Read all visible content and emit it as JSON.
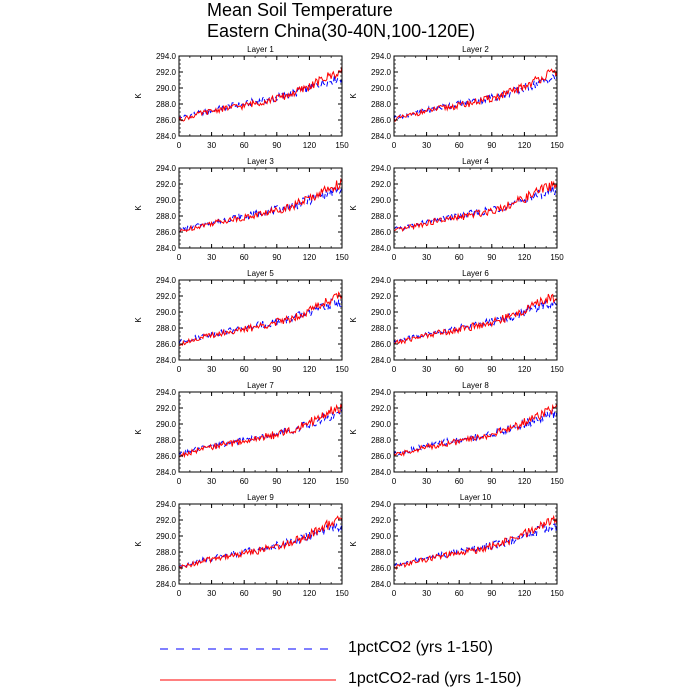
{
  "title": {
    "line1": "Mean Soil Temperature",
    "line2": "Eastern China(30-40N,100-120E)"
  },
  "legend": {
    "items": [
      {
        "label": "1pctCO2 (yrs 1-150)",
        "color": "#0000ff",
        "style": "dashed"
      },
      {
        "label": "1pctCO2-rad (yrs 1-150)",
        "color": "#ff0000",
        "style": "solid"
      }
    ]
  },
  "chart_data": {
    "type": "line",
    "layout": "5x2 small multiples",
    "ylabel": "K",
    "xlim": [
      0,
      150
    ],
    "ylim": [
      284.0,
      294.0
    ],
    "xticks": [
      0,
      30,
      60,
      90,
      120,
      150
    ],
    "yticks": [
      "284.0",
      "286.0",
      "288.0",
      "290.0",
      "292.0",
      "294.0"
    ],
    "grid": false,
    "legend_position": "bottom",
    "x_years": [
      0,
      10,
      20,
      30,
      40,
      50,
      60,
      70,
      80,
      90,
      100,
      110,
      120,
      130,
      140,
      150
    ],
    "series_names": [
      "1pctCO2 (yrs 1-150)",
      "1pctCO2-rad (yrs 1-150)"
    ],
    "panels": [
      {
        "title": "Layer 1",
        "series": [
          {
            "name": "1pctCO2 (yrs 1-150)",
            "values": [
              286.2,
              286.6,
              286.9,
              287.2,
              287.5,
              287.8,
              287.9,
              288.3,
              288.5,
              288.8,
              289.1,
              289.5,
              290.0,
              290.5,
              291.0,
              291.3
            ]
          },
          {
            "name": "1pctCO2-rad (yrs 1-150)",
            "values": [
              286.0,
              286.4,
              286.8,
              287.1,
              287.4,
              287.6,
              287.8,
              288.1,
              288.4,
              288.7,
              289.1,
              289.6,
              290.2,
              290.9,
              291.6,
              292.1
            ]
          }
        ]
      },
      {
        "title": "Layer 2",
        "series": [
          {
            "name": "1pctCO2 (yrs 1-150)",
            "values": [
              286.3,
              286.6,
              286.9,
              287.2,
              287.5,
              287.8,
              288.0,
              288.3,
              288.5,
              288.8,
              289.1,
              289.5,
              290.0,
              290.5,
              291.0,
              291.3
            ]
          },
          {
            "name": "1pctCO2-rad (yrs 1-150)",
            "values": [
              286.1,
              286.4,
              286.8,
              287.1,
              287.4,
              287.6,
              287.8,
              288.1,
              288.4,
              288.7,
              289.1,
              289.6,
              290.2,
              290.9,
              291.6,
              292.0
            ]
          }
        ]
      },
      {
        "title": "Layer 3",
        "series": [
          {
            "name": "1pctCO2 (yrs 1-150)",
            "values": [
              286.2,
              286.6,
              286.9,
              287.2,
              287.5,
              287.8,
              287.9,
              288.3,
              288.5,
              288.8,
              289.1,
              289.5,
              290.0,
              290.5,
              291.0,
              291.3
            ]
          },
          {
            "name": "1pctCO2-rad (yrs 1-150)",
            "values": [
              286.0,
              286.4,
              286.8,
              287.1,
              287.4,
              287.6,
              287.8,
              288.1,
              288.4,
              288.7,
              289.1,
              289.6,
              290.2,
              290.9,
              291.6,
              292.1
            ]
          }
        ]
      },
      {
        "title": "Layer 4",
        "series": [
          {
            "name": "1pctCO2 (yrs 1-150)",
            "values": [
              286.3,
              286.6,
              286.9,
              287.2,
              287.5,
              287.8,
              288.0,
              288.3,
              288.5,
              288.8,
              289.1,
              289.5,
              290.0,
              290.5,
              291.0,
              291.3
            ]
          },
          {
            "name": "1pctCO2-rad (yrs 1-150)",
            "values": [
              286.1,
              286.4,
              286.8,
              287.1,
              287.4,
              287.6,
              287.8,
              288.1,
              288.4,
              288.7,
              289.1,
              289.6,
              290.2,
              290.9,
              291.6,
              292.0
            ]
          }
        ]
      },
      {
        "title": "Layer 5",
        "series": [
          {
            "name": "1pctCO2 (yrs 1-150)",
            "values": [
              286.2,
              286.6,
              286.9,
              287.2,
              287.5,
              287.8,
              287.9,
              288.3,
              288.5,
              288.8,
              289.1,
              289.5,
              290.0,
              290.5,
              291.0,
              291.3
            ]
          },
          {
            "name": "1pctCO2-rad (yrs 1-150)",
            "values": [
              286.0,
              286.4,
              286.8,
              287.1,
              287.4,
              287.6,
              287.8,
              288.1,
              288.4,
              288.7,
              289.1,
              289.6,
              290.2,
              290.9,
              291.6,
              292.1
            ]
          }
        ]
      },
      {
        "title": "Layer 6",
        "series": [
          {
            "name": "1pctCO2 (yrs 1-150)",
            "values": [
              286.3,
              286.6,
              286.9,
              287.2,
              287.5,
              287.8,
              288.0,
              288.3,
              288.5,
              288.8,
              289.1,
              289.5,
              290.0,
              290.5,
              291.0,
              291.3
            ]
          },
          {
            "name": "1pctCO2-rad (yrs 1-150)",
            "values": [
              286.1,
              286.4,
              286.8,
              287.1,
              287.4,
              287.6,
              287.8,
              288.1,
              288.4,
              288.7,
              289.1,
              289.6,
              290.2,
              290.9,
              291.6,
              292.0
            ]
          }
        ]
      },
      {
        "title": "Layer 7",
        "series": [
          {
            "name": "1pctCO2 (yrs 1-150)",
            "values": [
              286.2,
              286.6,
              286.9,
              287.2,
              287.5,
              287.8,
              287.9,
              288.3,
              288.5,
              288.8,
              289.1,
              289.5,
              290.0,
              290.5,
              291.0,
              291.3
            ]
          },
          {
            "name": "1pctCO2-rad (yrs 1-150)",
            "values": [
              286.0,
              286.4,
              286.8,
              287.1,
              287.4,
              287.6,
              287.8,
              288.1,
              288.4,
              288.7,
              289.1,
              289.6,
              290.2,
              290.9,
              291.6,
              292.1
            ]
          }
        ]
      },
      {
        "title": "Layer 8",
        "series": [
          {
            "name": "1pctCO2 (yrs 1-150)",
            "values": [
              286.3,
              286.6,
              286.9,
              287.2,
              287.5,
              287.8,
              288.0,
              288.3,
              288.5,
              288.8,
              289.1,
              289.5,
              290.0,
              290.5,
              291.0,
              291.3
            ]
          },
          {
            "name": "1pctCO2-rad (yrs 1-150)",
            "values": [
              286.1,
              286.4,
              286.8,
              287.1,
              287.4,
              287.6,
              287.8,
              288.1,
              288.4,
              288.7,
              289.1,
              289.6,
              290.2,
              290.9,
              291.6,
              292.0
            ]
          }
        ]
      },
      {
        "title": "Layer 9",
        "series": [
          {
            "name": "1pctCO2 (yrs 1-150)",
            "values": [
              286.2,
              286.6,
              286.9,
              287.2,
              287.5,
              287.8,
              287.9,
              288.3,
              288.5,
              288.8,
              289.1,
              289.5,
              290.0,
              290.5,
              291.0,
              291.3
            ]
          },
          {
            "name": "1pctCO2-rad (yrs 1-150)",
            "values": [
              286.0,
              286.4,
              286.8,
              287.1,
              287.4,
              287.6,
              287.8,
              288.1,
              288.4,
              288.7,
              289.1,
              289.6,
              290.2,
              290.9,
              291.6,
              292.1
            ]
          }
        ]
      },
      {
        "title": "Layer 10",
        "series": [
          {
            "name": "1pctCO2 (yrs 1-150)",
            "values": [
              286.3,
              286.6,
              286.9,
              287.2,
              287.5,
              287.8,
              288.0,
              288.3,
              288.5,
              288.8,
              289.1,
              289.5,
              290.0,
              290.5,
              291.0,
              291.3
            ]
          },
          {
            "name": "1pctCO2-rad (yrs 1-150)",
            "values": [
              286.1,
              286.4,
              286.8,
              287.1,
              287.4,
              287.6,
              287.8,
              288.1,
              288.4,
              288.7,
              289.1,
              289.6,
              290.2,
              290.9,
              291.6,
              292.0
            ]
          }
        ]
      }
    ]
  }
}
